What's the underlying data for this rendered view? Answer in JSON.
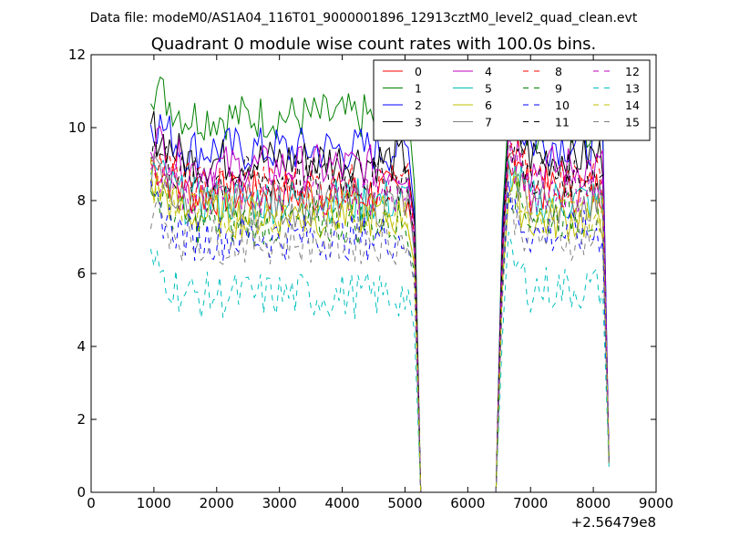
{
  "chart_data": {
    "type": "line",
    "suptitle": "Data file: modeM0/AS1A04_116T01_9000001896_12913cztM0_level2_quad_clean.evt",
    "title": "Quadrant 0 module wise count rates with 100.0s bins.",
    "xlabel": "",
    "ylabel": "",
    "x_offset_label": "+2.56479e8",
    "xlim": [
      0,
      9000
    ],
    "ylim": [
      0,
      12
    ],
    "x_ticks": [
      0,
      1000,
      2000,
      3000,
      4000,
      5000,
      6000,
      7000,
      8000,
      9000
    ],
    "y_ticks": [
      0,
      2,
      4,
      6,
      8,
      10,
      12
    ],
    "grid": false,
    "legend_position": "top-right",
    "legend_columns": 4,
    "segments": [
      {
        "x_start": 950,
        "x_end": 5050,
        "plateau_end_x": 5150
      },
      {
        "x_start": 6550,
        "x_end": 8150,
        "plateau_start_x": 6650
      }
    ],
    "edge_points": {
      "zero_start_x": 5250,
      "zero_end_x": 6450,
      "final_x": 8250
    },
    "series": [
      {
        "name": "0",
        "color": "#ff0000",
        "dash": "solid",
        "seg1_mean": 8.2,
        "seg2_mean": 8.3,
        "final": 0.8
      },
      {
        "name": "1",
        "color": "#008000",
        "dash": "solid",
        "seg1_mean": 10.3,
        "seg2_mean": 10.0,
        "final": 0.8
      },
      {
        "name": "2",
        "color": "#0000ff",
        "dash": "solid",
        "seg1_mean": 9.4,
        "seg2_mean": 9.6,
        "final": 0.9
      },
      {
        "name": "3",
        "color": "#000000",
        "dash": "solid",
        "seg1_mean": 9.1,
        "seg2_mean": 9.2,
        "final": 0.9
      },
      {
        "name": "4",
        "color": "#bf00bf",
        "dash": "solid",
        "seg1_mean": 8.9,
        "seg2_mean": 8.9,
        "final": 0.8
      },
      {
        "name": "5",
        "color": "#00bfbf",
        "dash": "solid",
        "seg1_mean": 8.0,
        "seg2_mean": 8.0,
        "final": 0.8
      },
      {
        "name": "6",
        "color": "#bfbf00",
        "dash": "solid",
        "seg1_mean": 7.6,
        "seg2_mean": 7.5,
        "final": 0.8
      },
      {
        "name": "7",
        "color": "#808080",
        "dash": "solid",
        "seg1_mean": 7.9,
        "seg2_mean": 8.0,
        "final": 0.8
      },
      {
        "name": "8",
        "color": "#ff0000",
        "dash": "dashed",
        "seg1_mean": 8.4,
        "seg2_mean": 8.6,
        "final": 0.8
      },
      {
        "name": "9",
        "color": "#008000",
        "dash": "dashed",
        "seg1_mean": 7.4,
        "seg2_mean": 7.6,
        "final": 0.8
      },
      {
        "name": "10",
        "color": "#0000ff",
        "dash": "dashed",
        "seg1_mean": 7.0,
        "seg2_mean": 7.1,
        "final": 0.8
      },
      {
        "name": "11",
        "color": "#000000",
        "dash": "dashed",
        "seg1_mean": 8.6,
        "seg2_mean": 8.7,
        "final": 0.8
      },
      {
        "name": "12",
        "color": "#bf00bf",
        "dash": "dashed",
        "seg1_mean": 8.2,
        "seg2_mean": 8.3,
        "final": 0.8
      },
      {
        "name": "13",
        "color": "#00bfbf",
        "dash": "dashed",
        "seg1_mean": 5.4,
        "seg2_mean": 5.6,
        "final": 0.7
      },
      {
        "name": "14",
        "color": "#bfbf00",
        "dash": "dashed",
        "seg1_mean": 7.7,
        "seg2_mean": 7.6,
        "final": 0.8
      },
      {
        "name": "15",
        "color": "#808080",
        "dash": "dashed",
        "seg1_mean": 6.9,
        "seg2_mean": 7.0,
        "final": 0.8
      }
    ]
  }
}
